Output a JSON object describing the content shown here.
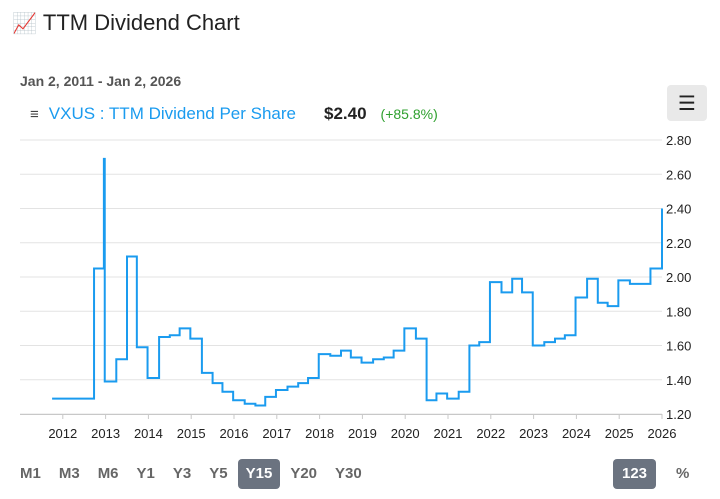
{
  "page": {
    "title_icon": "chart-increasing-icon",
    "title": "TTM Dividend Chart",
    "date_range": "Jan 2, 2011 - Jan 2, 2026"
  },
  "legend": {
    "menu_icon": "legend-menu-icon",
    "series_label": "VXUS : TTM Dividend Per Share",
    "current_value": "$2.40",
    "change": "(+85.8%)"
  },
  "controls": {
    "menu_icon": "hamburger-icon",
    "ranges": [
      "M1",
      "M3",
      "M6",
      "Y1",
      "Y3",
      "Y5",
      "Y15",
      "Y20",
      "Y30"
    ],
    "active_range": "Y15",
    "value_toggle": "123",
    "percent_toggle": "%"
  },
  "colors": {
    "line": "#1a9bef",
    "grid": "#e3e3e3",
    "active_button": "#6b7380",
    "positive": "#2ea02e"
  },
  "chart_data": {
    "type": "line",
    "title": "VXUS : TTM Dividend Per Share",
    "xlabel": "",
    "ylabel": "",
    "xlim": [
      2011.0,
      2026.0
    ],
    "ylim": [
      1.2,
      2.8
    ],
    "y_ticks": [
      "1.20",
      "1.40",
      "1.60",
      "1.80",
      "2.00",
      "2.20",
      "2.40",
      "2.60",
      "2.80"
    ],
    "x_ticks": [
      "2012",
      "2013",
      "2014",
      "2015",
      "2016",
      "2017",
      "2018",
      "2019",
      "2020",
      "2021",
      "2022",
      "2023",
      "2024",
      "2025",
      "2026"
    ],
    "grid": true,
    "series": [
      {
        "name": "VXUS TTM Dividend Per Share",
        "step": true,
        "x": [
          2011.75,
          2012.5,
          2012.73,
          2012.96,
          2012.98,
          2013.0,
          2013.02,
          2013.25,
          2013.5,
          2013.73,
          2013.98,
          2014.25,
          2014.5,
          2014.73,
          2014.98,
          2015.25,
          2015.5,
          2015.73,
          2015.98,
          2016.25,
          2016.5,
          2016.73,
          2016.98,
          2017.25,
          2017.5,
          2017.73,
          2017.98,
          2018.25,
          2018.5,
          2018.73,
          2018.98,
          2019.25,
          2019.5,
          2019.73,
          2019.98,
          2020.25,
          2020.5,
          2020.73,
          2020.98,
          2021.25,
          2021.5,
          2021.73,
          2021.98,
          2022.25,
          2022.5,
          2022.73,
          2022.98,
          2023.25,
          2023.5,
          2023.73,
          2023.98,
          2024.25,
          2024.5,
          2024.73,
          2024.98,
          2025.25,
          2025.5,
          2025.73,
          2025.98,
          2026.0
        ],
        "values": [
          1.29,
          1.29,
          2.05,
          2.69,
          1.39,
          1.39,
          1.39,
          1.52,
          2.12,
          1.59,
          1.41,
          1.65,
          1.66,
          1.7,
          1.64,
          1.44,
          1.38,
          1.33,
          1.28,
          1.26,
          1.25,
          1.3,
          1.34,
          1.36,
          1.38,
          1.41,
          1.55,
          1.54,
          1.57,
          1.53,
          1.5,
          1.52,
          1.53,
          1.57,
          1.7,
          1.64,
          1.28,
          1.32,
          1.29,
          1.33,
          1.6,
          1.62,
          1.97,
          1.91,
          1.99,
          1.91,
          1.6,
          1.62,
          1.64,
          1.66,
          1.88,
          1.99,
          1.85,
          1.83,
          1.98,
          1.96,
          1.96,
          2.05,
          2.05,
          2.4
        ]
      }
    ]
  }
}
